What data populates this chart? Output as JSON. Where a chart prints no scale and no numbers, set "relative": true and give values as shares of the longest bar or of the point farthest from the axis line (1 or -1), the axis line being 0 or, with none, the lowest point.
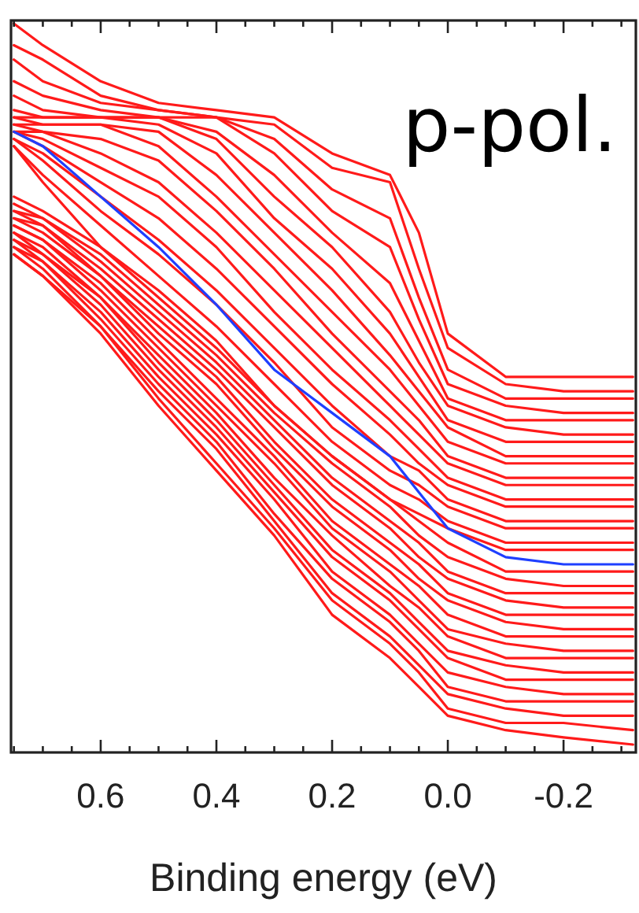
{
  "chart_data": {
    "type": "line",
    "relative": true,
    "xlabel": "Binding energy (eV)",
    "annotations": [
      "p-pol."
    ],
    "xlim": [
      0.755,
      -0.325
    ],
    "xticks": [
      {
        "value": 0.75,
        "label": null
      },
      {
        "value": 0.7,
        "label": null
      },
      {
        "value": 0.65,
        "label": null
      },
      {
        "value": 0.6,
        "label": "0.6"
      },
      {
        "value": 0.55,
        "label": null
      },
      {
        "value": 0.5,
        "label": null
      },
      {
        "value": 0.45,
        "label": null
      },
      {
        "value": 0.4,
        "label": "0.4"
      },
      {
        "value": 0.35,
        "label": null
      },
      {
        "value": 0.3,
        "label": null
      },
      {
        "value": 0.25,
        "label": null
      },
      {
        "value": 0.2,
        "label": "0.2"
      },
      {
        "value": 0.15,
        "label": null
      },
      {
        "value": 0.1,
        "label": null
      },
      {
        "value": 0.05,
        "label": null
      },
      {
        "value": 0,
        "label": "0.0"
      },
      {
        "value": -0.05,
        "label": null
      },
      {
        "value": -0.1,
        "label": null
      },
      {
        "value": -0.15,
        "label": null
      },
      {
        "value": -0.2,
        "label": "-0.2"
      },
      {
        "value": -0.25,
        "label": null
      },
      {
        "value": -0.3,
        "label": null
      }
    ],
    "x": [
      0.75,
      0.7,
      0.6,
      0.5,
      0.4,
      0.3,
      0.2,
      0.1,
      0.05,
      0,
      -0.1,
      -0.2,
      -0.32
    ],
    "series": [
      {
        "color": "#ff1a1a",
        "values": [
          1.0,
          0.97,
          0.92,
          0.89,
          0.88,
          0.87,
          0.82,
          0.79,
          0.71,
          0.57,
          0.51,
          0.51,
          0.51
        ]
      },
      {
        "color": "#ff1a1a",
        "values": [
          0.97,
          0.95,
          0.9,
          0.88,
          0.87,
          0.86,
          0.8,
          0.78,
          0.66,
          0.55,
          0.5,
          0.49,
          0.49
        ]
      },
      {
        "color": "#ff1a1a",
        "values": [
          0.95,
          0.92,
          0.89,
          0.88,
          0.87,
          0.84,
          0.77,
          0.73,
          0.62,
          0.52,
          0.48,
          0.48,
          0.48
        ]
      },
      {
        "color": "#ff1a1a",
        "values": [
          0.92,
          0.9,
          0.88,
          0.87,
          0.87,
          0.82,
          0.74,
          0.69,
          0.59,
          0.5,
          0.47,
          0.46,
          0.46
        ]
      },
      {
        "color": "#ff1a1a",
        "values": [
          0.9,
          0.88,
          0.87,
          0.87,
          0.85,
          0.79,
          0.71,
          0.64,
          0.56,
          0.48,
          0.45,
          0.45,
          0.45
        ]
      },
      {
        "color": "#ff1a1a",
        "values": [
          0.88,
          0.87,
          0.87,
          0.87,
          0.84,
          0.76,
          0.69,
          0.6,
          0.53,
          0.47,
          0.44,
          0.43,
          0.43
        ]
      },
      {
        "color": "#ff1a1a",
        "values": [
          0.87,
          0.87,
          0.87,
          0.86,
          0.82,
          0.73,
          0.66,
          0.57,
          0.51,
          0.45,
          0.42,
          0.42,
          0.42
        ]
      },
      {
        "color": "#ff1a1a",
        "values": [
          0.87,
          0.86,
          0.86,
          0.85,
          0.79,
          0.71,
          0.63,
          0.54,
          0.49,
          0.44,
          0.4,
          0.4,
          0.4
        ]
      },
      {
        "color": "#ff1a1a",
        "values": [
          0.86,
          0.86,
          0.86,
          0.83,
          0.76,
          0.68,
          0.6,
          0.52,
          0.47,
          0.42,
          0.39,
          0.39,
          0.39
        ]
      },
      {
        "color": "#ff1a1a",
        "values": [
          0.86,
          0.85,
          0.84,
          0.81,
          0.74,
          0.66,
          0.57,
          0.49,
          0.45,
          0.4,
          0.37,
          0.37,
          0.37
        ]
      },
      {
        "color": "#ff1a1a",
        "values": [
          0.85,
          0.85,
          0.82,
          0.78,
          0.71,
          0.63,
          0.55,
          0.47,
          0.43,
          0.39,
          0.36,
          0.36,
          0.36
        ]
      },
      {
        "color": "#ff1a1a",
        "values": [
          0.85,
          0.84,
          0.8,
          0.76,
          0.69,
          0.6,
          0.52,
          0.45,
          0.41,
          0.37,
          0.34,
          0.34,
          0.34
        ]
      },
      {
        "color": "#ff1a1a",
        "values": [
          0.85,
          0.83,
          0.78,
          0.73,
          0.66,
          0.58,
          0.5,
          0.43,
          0.39,
          0.36,
          0.33,
          0.33,
          0.33
        ]
      },
      {
        "color": "#ff1a1a",
        "values": [
          0.84,
          0.82,
          0.76,
          0.7,
          0.63,
          0.55,
          0.47,
          0.4,
          0.38,
          0.34,
          0.31,
          0.31,
          0.31
        ]
      },
      {
        "color": "#ff1a1a",
        "values": [
          0.84,
          0.81,
          0.74,
          0.68,
          0.61,
          0.53,
          0.44,
          0.38,
          0.36,
          0.33,
          0.3,
          0.3,
          0.3
        ]
      },
      {
        "color": "#ff1a1a",
        "values": [
          0.83,
          0.79,
          0.72,
          0.65,
          0.58,
          0.5,
          0.42,
          0.36,
          0.34,
          0.31,
          0.28,
          0.28,
          0.28
        ]
      },
      {
        "color": "#ff1a1a",
        "values": [
          0.83,
          0.78,
          0.69,
          0.63,
          0.56,
          0.47,
          0.4,
          0.34,
          0.32,
          0.3,
          0.27,
          0.27,
          0.27
        ]
      },
      {
        "color": "#1f3fff",
        "values": [
          0.85,
          0.83,
          0.76,
          0.69,
          0.61,
          0.52,
          0.46,
          0.4,
          0.35,
          0.3,
          0.26,
          0.25,
          0.25
        ]
      },
      {
        "color": "#ff1a1a",
        "values": [
          0.76,
          0.74,
          0.69,
          0.62,
          0.55,
          0.47,
          0.4,
          0.34,
          0.31,
          0.28,
          0.24,
          0.24,
          0.24
        ]
      },
      {
        "color": "#ff1a1a",
        "values": [
          0.75,
          0.73,
          0.68,
          0.61,
          0.54,
          0.46,
          0.39,
          0.33,
          0.29,
          0.26,
          0.23,
          0.22,
          0.22
        ]
      },
      {
        "color": "#ff1a1a",
        "values": [
          0.74,
          0.73,
          0.67,
          0.6,
          0.53,
          0.45,
          0.37,
          0.31,
          0.28,
          0.24,
          0.21,
          0.21,
          0.21
        ]
      },
      {
        "color": "#ff1a1a",
        "values": [
          0.74,
          0.72,
          0.66,
          0.59,
          0.52,
          0.44,
          0.36,
          0.3,
          0.26,
          0.23,
          0.2,
          0.19,
          0.19
        ]
      },
      {
        "color": "#ff1a1a",
        "values": [
          0.73,
          0.72,
          0.65,
          0.58,
          0.51,
          0.42,
          0.34,
          0.28,
          0.25,
          0.21,
          0.18,
          0.18,
          0.18
        ]
      },
      {
        "color": "#ff1a1a",
        "values": [
          0.73,
          0.71,
          0.65,
          0.57,
          0.5,
          0.41,
          0.33,
          0.27,
          0.23,
          0.2,
          0.17,
          0.16,
          0.16
        ]
      },
      {
        "color": "#ff1a1a",
        "values": [
          0.72,
          0.7,
          0.64,
          0.56,
          0.48,
          0.4,
          0.31,
          0.25,
          0.22,
          0.18,
          0.15,
          0.15,
          0.15
        ]
      },
      {
        "color": "#ff1a1a",
        "values": [
          0.72,
          0.7,
          0.63,
          0.55,
          0.47,
          0.39,
          0.3,
          0.24,
          0.2,
          0.16,
          0.14,
          0.13,
          0.13
        ]
      },
      {
        "color": "#ff1a1a",
        "values": [
          0.71,
          0.69,
          0.62,
          0.54,
          0.46,
          0.37,
          0.29,
          0.22,
          0.19,
          0.15,
          0.12,
          0.12,
          0.12
        ]
      },
      {
        "color": "#ff1a1a",
        "values": [
          0.71,
          0.68,
          0.62,
          0.53,
          0.45,
          0.36,
          0.27,
          0.21,
          0.17,
          0.13,
          0.11,
          0.1,
          0.1
        ]
      },
      {
        "color": "#ff1a1a",
        "values": [
          0.7,
          0.68,
          0.61,
          0.52,
          0.44,
          0.35,
          0.26,
          0.2,
          0.16,
          0.12,
          0.09,
          0.09,
          0.09
        ]
      },
      {
        "color": "#ff1a1a",
        "values": [
          0.7,
          0.67,
          0.6,
          0.51,
          0.43,
          0.34,
          0.24,
          0.18,
          0.14,
          0.1,
          0.08,
          0.07,
          0.07
        ]
      },
      {
        "color": "#ff1a1a",
        "values": [
          0.69,
          0.67,
          0.59,
          0.5,
          0.42,
          0.32,
          0.23,
          0.17,
          0.13,
          0.08,
          0.06,
          0.06,
          0.06
        ]
      },
      {
        "color": "#ff1a1a",
        "values": [
          0.69,
          0.66,
          0.58,
          0.49,
          0.41,
          0.31,
          0.21,
          0.15,
          0.11,
          0.07,
          0.05,
          0.04,
          0.04
        ]
      },
      {
        "color": "#ff1a1a",
        "values": [
          0.68,
          0.65,
          0.58,
          0.48,
          0.39,
          0.3,
          0.2,
          0.14,
          0.1,
          0.05,
          0.03,
          0.03,
          0.02
        ]
      },
      {
        "color": "#ff1a1a",
        "values": [
          0.68,
          0.65,
          0.57,
          0.47,
          0.38,
          0.29,
          0.18,
          0.12,
          0.08,
          0.04,
          0.02,
          0.01,
          0
        ]
      }
    ]
  }
}
